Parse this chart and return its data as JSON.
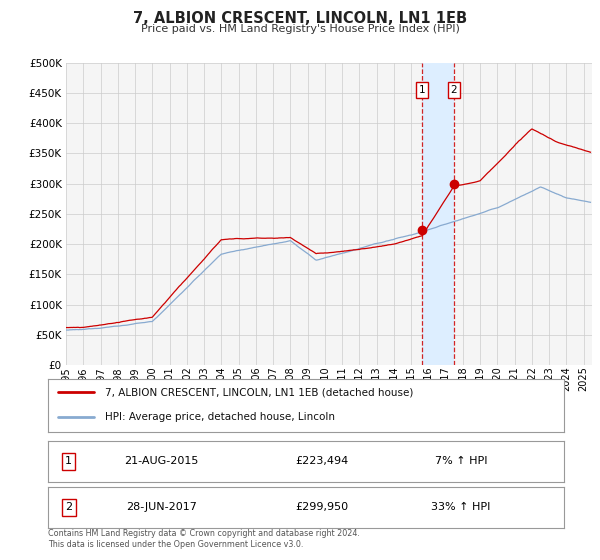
{
  "title": "7, ALBION CRESCENT, LINCOLN, LN1 1EB",
  "subtitle": "Price paid vs. HM Land Registry's House Price Index (HPI)",
  "legend_line1": "7, ALBION CRESCENT, LINCOLN, LN1 1EB (detached house)",
  "legend_line2": "HPI: Average price, detached house, Lincoln",
  "table_row1": [
    "1",
    "21-AUG-2015",
    "£223,494",
    "7% ↑ HPI"
  ],
  "table_row2": [
    "2",
    "28-JUN-2017",
    "£299,950",
    "33% ↑ HPI"
  ],
  "footer": "Contains HM Land Registry data © Crown copyright and database right 2024.\nThis data is licensed under the Open Government Licence v3.0.",
  "red_color": "#cc0000",
  "blue_color": "#88aad0",
  "shade_color": "#ddeeff",
  "vline_color": "#cc0000",
  "grid_color": "#cccccc",
  "bg_color": "#ffffff",
  "plot_bg_color": "#f5f5f5",
  "ylim": [
    0,
    500000
  ],
  "yticks": [
    0,
    50000,
    100000,
    150000,
    200000,
    250000,
    300000,
    350000,
    400000,
    450000,
    500000
  ],
  "xlim_start": 1995.0,
  "xlim_end": 2025.5,
  "event1_x": 2015.638,
  "event1_y_red": 223494,
  "event2_x": 2017.486,
  "event2_y_red": 299950,
  "shade_x_start": 2015.638,
  "shade_x_end": 2017.486
}
